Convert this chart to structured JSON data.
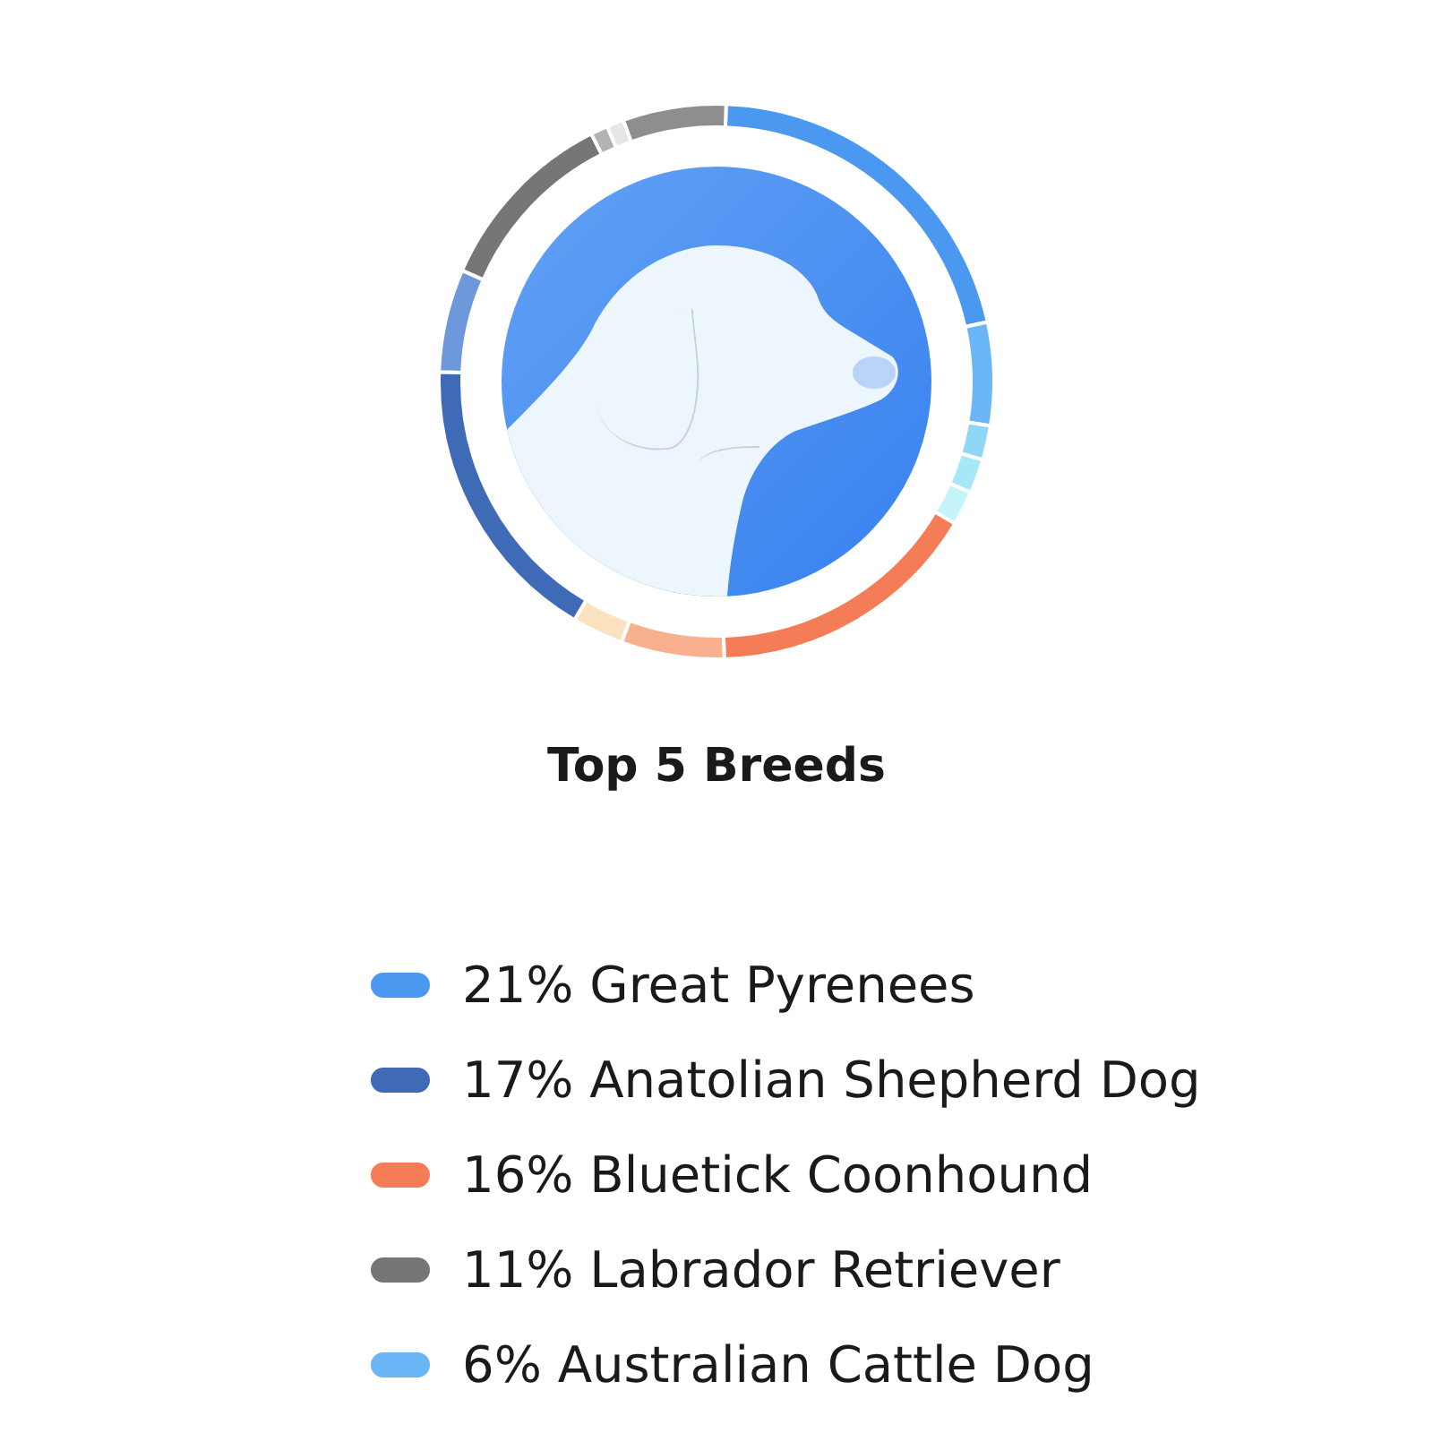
{
  "chart_data": {
    "type": "donut",
    "title": "Top 5 Breeds",
    "categories": [
      "Great Pyrenees",
      "Australian Cattle Dog",
      null,
      null,
      null,
      "Bluetick Coonhound",
      null,
      null,
      "Anatolian Shepherd Dog",
      null,
      "Labrador Retriever",
      null,
      null,
      null
    ],
    "values": [
      21,
      6,
      2,
      2,
      2,
      16,
      6,
      3,
      17,
      6,
      11,
      1,
      1,
      6
    ],
    "colors": [
      "#4a98f0",
      "#6ab6f6",
      "#8fd6f7",
      "#a6e8f8",
      "#c4f3fa",
      "#f47c56",
      "#f9b08e",
      "#fde2c0",
      "#3f6ab6",
      "#6d98dc",
      "#767676",
      "#b3b3b3",
      "#e6e6e6",
      "#8e8e8e"
    ],
    "value_labels": [
      "21%",
      "6%",
      null,
      null,
      null,
      "16%",
      null,
      null,
      "17%",
      null,
      "11%",
      null,
      null,
      null
    ],
    "legend": "bottom"
  }
}
